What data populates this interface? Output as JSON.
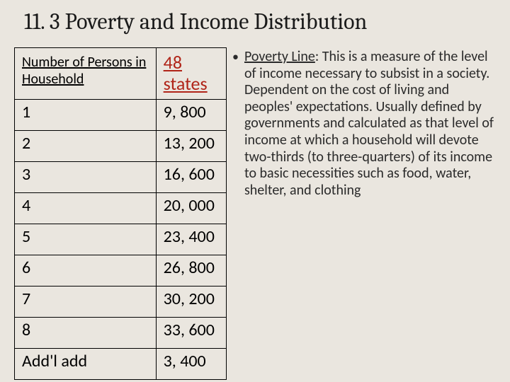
{
  "title": "11. 3 Poverty and Income Distribution",
  "table": {
    "columns": [
      "Number of Persons in Household",
      "48 states"
    ],
    "col_styles": {
      "persons_fontsize": 20,
      "states_fontsize": 26,
      "states_color": "#b02418"
    },
    "rows": [
      [
        "1",
        "9, 800"
      ],
      [
        "2",
        "13, 200"
      ],
      [
        "3",
        "16, 600"
      ],
      [
        "4",
        "20, 000"
      ],
      [
        "5",
        "23, 400"
      ],
      [
        "6",
        "26, 800"
      ],
      [
        "7",
        "30, 200"
      ],
      [
        "8",
        "33, 600"
      ],
      [
        "Add'l add",
        "3, 400"
      ]
    ],
    "border_color": "#000000",
    "cell_fontsize": 24
  },
  "definition": {
    "bullet": "•",
    "term": "Poverty Line",
    "text": ": This is a measure of the level of income necessary to subsist in a society. Dependent on the cost of living and peoples' expectations. Usually defined by governments and calculated as that level of income at which a household will devote two-thirds (to three-quarters) of its income to basic necessities such as food, water, shelter, and clothing"
  },
  "colors": {
    "background": "#eae6df",
    "title_color": "#1a1a1a",
    "text_color": "#2a2a2a"
  },
  "typography": {
    "title_font": "Cambria",
    "title_fontsize": 32,
    "body_font": "Calibri",
    "body_fontsize": 20
  }
}
